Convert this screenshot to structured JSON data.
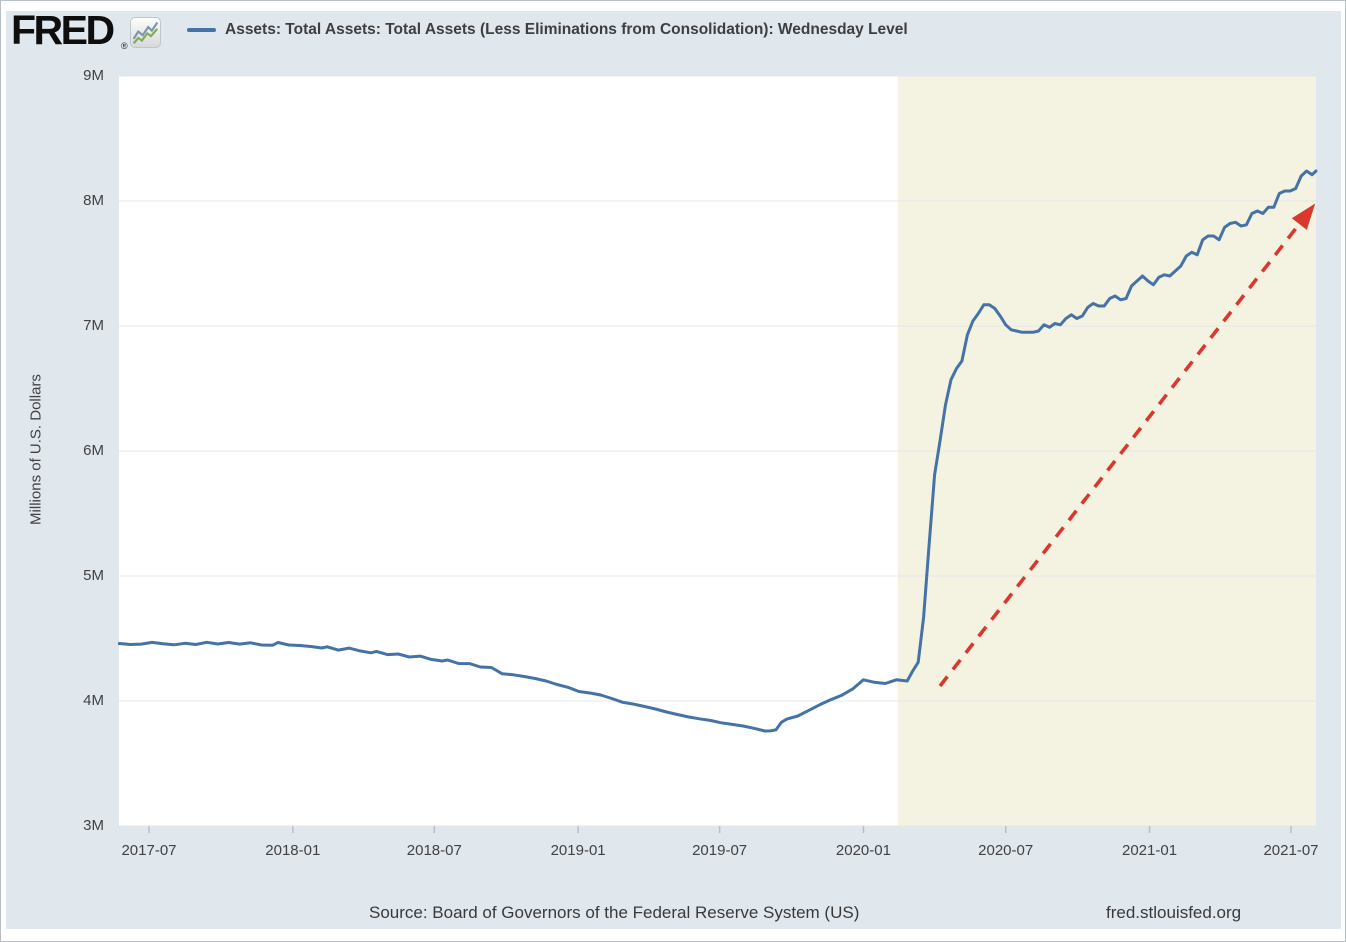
{
  "header": {
    "logo_text": "FRED",
    "registered_mark": "®",
    "logo_icon": "sparkline-icon",
    "legend_label": "Assets: Total Assets: Total Assets (Less Eliminations from Consolidation): Wednesday Level"
  },
  "footer": {
    "source": "Source: Board of Governors of the Federal Reserve System (US)",
    "site": "fred.stlouisfed.org"
  },
  "colors": {
    "page_background": "#e0e7ed",
    "plot_background": "#ffffff",
    "highlight_region": "#f4f2e1",
    "gridline": "#e7e7e7",
    "tick": "#b6c0c9",
    "series_line": "#4572a7",
    "annotation_arrow": "#d9382e",
    "axis_text": "#424242"
  },
  "chart_data": {
    "type": "line",
    "title": "Assets: Total Assets: Total Assets (Less Eliminations from Consolidation): Wednesday Level",
    "ylabel": "Millions of U.S. Dollars",
    "xlabel": "",
    "legend_position": "top-left",
    "grid": "horizontal",
    "ylim": [
      3000000,
      9000000
    ],
    "x_range": [
      "2017-05-24",
      "2021-08-04"
    ],
    "y_axis": {
      "ticks": [
        {
          "label": "9M",
          "value": 9000000
        },
        {
          "label": "8M",
          "value": 8000000
        },
        {
          "label": "7M",
          "value": 7000000
        },
        {
          "label": "6M",
          "value": 6000000
        },
        {
          "label": "5M",
          "value": 5000000
        },
        {
          "label": "4M",
          "value": 4000000
        },
        {
          "label": "3M",
          "value": 3000000
        }
      ]
    },
    "x_axis": {
      "ticks": [
        {
          "label": "2017-07",
          "date": "2017-07-01"
        },
        {
          "label": "2018-01",
          "date": "2018-01-01"
        },
        {
          "label": "2018-07",
          "date": "2018-07-01"
        },
        {
          "label": "2019-01",
          "date": "2019-01-01"
        },
        {
          "label": "2019-07",
          "date": "2019-07-01"
        },
        {
          "label": "2020-01",
          "date": "2020-01-01"
        },
        {
          "label": "2020-07",
          "date": "2020-07-01"
        },
        {
          "label": "2021-01",
          "date": "2021-01-01"
        },
        {
          "label": "2021-07",
          "date": "2021-07-01"
        }
      ]
    },
    "highlight_region": {
      "start": "2020-02-14",
      "end": "2021-08-04",
      "color": "#f4f2e1"
    },
    "annotation_arrow": {
      "style": "dashed",
      "color": "#d9382e",
      "from": {
        "date": "2020-04-08",
        "value": 4120000
      },
      "to": {
        "date": "2021-08-01",
        "value": 7980000
      }
    },
    "series": [
      {
        "name": "Assets: Total Assets: Total Assets (Less Eliminations from Consolidation): Wednesday Level",
        "color": "#4572a7",
        "units": "Millions of U.S. Dollars",
        "points": [
          [
            "2017-05-24",
            4460000
          ],
          [
            "2017-06-07",
            4452000
          ],
          [
            "2017-06-21",
            4455000
          ],
          [
            "2017-07-05",
            4469000
          ],
          [
            "2017-07-19",
            4458000
          ],
          [
            "2017-08-02",
            4450000
          ],
          [
            "2017-08-16",
            4462000
          ],
          [
            "2017-08-30",
            4452000
          ],
          [
            "2017-09-13",
            4470000
          ],
          [
            "2017-09-27",
            4456000
          ],
          [
            "2017-10-11",
            4468000
          ],
          [
            "2017-10-25",
            4455000
          ],
          [
            "2017-11-08",
            4466000
          ],
          [
            "2017-11-22",
            4448000
          ],
          [
            "2017-12-06",
            4446000
          ],
          [
            "2017-12-13",
            4468000
          ],
          [
            "2017-12-27",
            4448000
          ],
          [
            "2018-01-10",
            4444000
          ],
          [
            "2018-01-24",
            4436000
          ],
          [
            "2018-02-07",
            4424000
          ],
          [
            "2018-02-14",
            4434000
          ],
          [
            "2018-02-28",
            4407000
          ],
          [
            "2018-03-14",
            4423000
          ],
          [
            "2018-03-28",
            4401000
          ],
          [
            "2018-04-11",
            4386000
          ],
          [
            "2018-04-18",
            4397000
          ],
          [
            "2018-05-02",
            4371000
          ],
          [
            "2018-05-16",
            4376000
          ],
          [
            "2018-05-30",
            4352000
          ],
          [
            "2018-06-13",
            4359000
          ],
          [
            "2018-06-27",
            4333000
          ],
          [
            "2018-07-11",
            4320000
          ],
          [
            "2018-07-18",
            4328000
          ],
          [
            "2018-08-01",
            4300000
          ],
          [
            "2018-08-15",
            4299000
          ],
          [
            "2018-08-29",
            4272000
          ],
          [
            "2018-09-12",
            4268000
          ],
          [
            "2018-09-26",
            4218000
          ],
          [
            "2018-10-10",
            4210000
          ],
          [
            "2018-10-24",
            4196000
          ],
          [
            "2018-11-07",
            4180000
          ],
          [
            "2018-11-21",
            4160000
          ],
          [
            "2018-12-05",
            4132000
          ],
          [
            "2018-12-19",
            4110000
          ],
          [
            "2019-01-02",
            4076000
          ],
          [
            "2019-01-16",
            4064000
          ],
          [
            "2019-01-30",
            4048000
          ],
          [
            "2019-02-13",
            4020000
          ],
          [
            "2019-02-27",
            3990000
          ],
          [
            "2019-03-13",
            3975000
          ],
          [
            "2019-03-27",
            3956000
          ],
          [
            "2019-04-10",
            3936000
          ],
          [
            "2019-04-24",
            3912000
          ],
          [
            "2019-05-08",
            3892000
          ],
          [
            "2019-05-22",
            3873000
          ],
          [
            "2019-06-05",
            3858000
          ],
          [
            "2019-06-19",
            3845000
          ],
          [
            "2019-07-03",
            3826000
          ],
          [
            "2019-07-17",
            3813000
          ],
          [
            "2019-07-31",
            3800000
          ],
          [
            "2019-08-14",
            3782000
          ],
          [
            "2019-08-28",
            3760000
          ],
          [
            "2019-09-04",
            3761000
          ],
          [
            "2019-09-11",
            3769000
          ],
          [
            "2019-09-18",
            3830000
          ],
          [
            "2019-09-25",
            3855000
          ],
          [
            "2019-10-09",
            3880000
          ],
          [
            "2019-10-23",
            3925000
          ],
          [
            "2019-11-06",
            3970000
          ],
          [
            "2019-11-20",
            4010000
          ],
          [
            "2019-12-04",
            4045000
          ],
          [
            "2019-12-18",
            4095000
          ],
          [
            "2020-01-01",
            4170000
          ],
          [
            "2020-01-15",
            4150000
          ],
          [
            "2020-01-29",
            4140000
          ],
          [
            "2020-02-12",
            4170000
          ],
          [
            "2020-02-26",
            4160000
          ],
          [
            "2020-03-04",
            4240000
          ],
          [
            "2020-03-11",
            4310000
          ],
          [
            "2020-03-18",
            4670000
          ],
          [
            "2020-03-25",
            5250000
          ],
          [
            "2020-04-01",
            5810000
          ],
          [
            "2020-04-08",
            6080000
          ],
          [
            "2020-04-15",
            6370000
          ],
          [
            "2020-04-22",
            6570000
          ],
          [
            "2020-04-29",
            6660000
          ],
          [
            "2020-05-06",
            6720000
          ],
          [
            "2020-05-13",
            6930000
          ],
          [
            "2020-05-20",
            7040000
          ],
          [
            "2020-05-27",
            7100000
          ],
          [
            "2020-06-03",
            7170000
          ],
          [
            "2020-06-10",
            7170000
          ],
          [
            "2020-06-17",
            7140000
          ],
          [
            "2020-06-24",
            7080000
          ],
          [
            "2020-07-01",
            7010000
          ],
          [
            "2020-07-08",
            6970000
          ],
          [
            "2020-07-15",
            6960000
          ],
          [
            "2020-07-22",
            6950000
          ],
          [
            "2020-07-29",
            6950000
          ],
          [
            "2020-08-05",
            6950000
          ],
          [
            "2020-08-12",
            6960000
          ],
          [
            "2020-08-19",
            7010000
          ],
          [
            "2020-08-26",
            6990000
          ],
          [
            "2020-09-02",
            7020000
          ],
          [
            "2020-09-09",
            7010000
          ],
          [
            "2020-09-16",
            7060000
          ],
          [
            "2020-09-23",
            7090000
          ],
          [
            "2020-09-30",
            7060000
          ],
          [
            "2020-10-07",
            7080000
          ],
          [
            "2020-10-14",
            7150000
          ],
          [
            "2020-10-21",
            7180000
          ],
          [
            "2020-10-28",
            7160000
          ],
          [
            "2020-11-04",
            7160000
          ],
          [
            "2020-11-11",
            7220000
          ],
          [
            "2020-11-18",
            7240000
          ],
          [
            "2020-11-25",
            7210000
          ],
          [
            "2020-12-02",
            7220000
          ],
          [
            "2020-12-09",
            7320000
          ],
          [
            "2020-12-16",
            7360000
          ],
          [
            "2020-12-23",
            7400000
          ],
          [
            "2020-12-30",
            7360000
          ],
          [
            "2021-01-06",
            7330000
          ],
          [
            "2021-01-13",
            7390000
          ],
          [
            "2021-01-20",
            7410000
          ],
          [
            "2021-01-27",
            7400000
          ],
          [
            "2021-02-03",
            7440000
          ],
          [
            "2021-02-10",
            7480000
          ],
          [
            "2021-02-17",
            7560000
          ],
          [
            "2021-02-24",
            7590000
          ],
          [
            "2021-03-03",
            7570000
          ],
          [
            "2021-03-10",
            7690000
          ],
          [
            "2021-03-17",
            7720000
          ],
          [
            "2021-03-24",
            7720000
          ],
          [
            "2021-03-31",
            7690000
          ],
          [
            "2021-04-07",
            7790000
          ],
          [
            "2021-04-14",
            7820000
          ],
          [
            "2021-04-21",
            7830000
          ],
          [
            "2021-04-28",
            7800000
          ],
          [
            "2021-05-05",
            7810000
          ],
          [
            "2021-05-12",
            7900000
          ],
          [
            "2021-05-19",
            7920000
          ],
          [
            "2021-05-26",
            7900000
          ],
          [
            "2021-06-02",
            7950000
          ],
          [
            "2021-06-09",
            7950000
          ],
          [
            "2021-06-16",
            8060000
          ],
          [
            "2021-06-23",
            8080000
          ],
          [
            "2021-06-30",
            8080000
          ],
          [
            "2021-07-07",
            8100000
          ],
          [
            "2021-07-14",
            8200000
          ],
          [
            "2021-07-21",
            8240000
          ],
          [
            "2021-07-28",
            8210000
          ],
          [
            "2021-08-04",
            8240000
          ]
        ]
      }
    ]
  }
}
